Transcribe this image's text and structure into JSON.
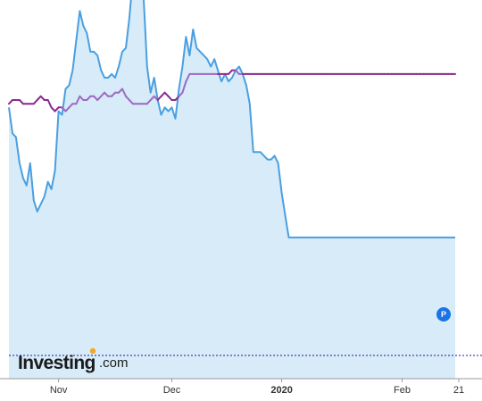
{
  "colors": {
    "series_a_line": "#4a9fe0",
    "series_a_fill": "#d8ebf8",
    "series_b_line": "#8a2a8c",
    "series_b_light": "#9b6bc2",
    "last_line": "#1a1aa0",
    "logo_accent": "#f5a623",
    "marker": "#1a73e8"
  },
  "logo": {
    "main": "Investing",
    "domain": ".com"
  },
  "marker": {
    "label": "P"
  },
  "chart_data": {
    "type": "line",
    "x_axis": {
      "tick_labels": [
        {
          "label": "Nov",
          "index": 14,
          "bold": false
        },
        {
          "label": "Dec",
          "index": 46,
          "bold": false
        },
        {
          "label": "2020",
          "index": 77,
          "bold": true
        },
        {
          "label": "Feb",
          "index": 111,
          "bold": false
        },
        {
          "label": "21",
          "index": 127,
          "bold": false
        }
      ]
    },
    "y_axis": {
      "ylim": [
        0,
        100
      ],
      "labels_shown": false
    },
    "grid": false,
    "legend": "none",
    "series": [
      {
        "style": "area",
        "values": [
          [
            0,
            73
          ],
          [
            1,
            66
          ],
          [
            2,
            65
          ],
          [
            3,
            58
          ],
          [
            4,
            54
          ],
          [
            5,
            52
          ],
          [
            6,
            58
          ],
          [
            7,
            48
          ],
          [
            8,
            45
          ],
          [
            9,
            47
          ],
          [
            10,
            49
          ],
          [
            11,
            53
          ],
          [
            12,
            51
          ],
          [
            13,
            56
          ],
          [
            14,
            72
          ],
          [
            15,
            71
          ],
          [
            16,
            78
          ],
          [
            17,
            79
          ],
          [
            18,
            83
          ],
          [
            19,
            91
          ],
          [
            20,
            99
          ],
          [
            21,
            95
          ],
          [
            22,
            93
          ],
          [
            23,
            88
          ],
          [
            24,
            88
          ],
          [
            25,
            87
          ],
          [
            26,
            83
          ],
          [
            27,
            81
          ],
          [
            28,
            81
          ],
          [
            29,
            82
          ],
          [
            30,
            81
          ],
          [
            31,
            84
          ],
          [
            32,
            88
          ],
          [
            33,
            89
          ],
          [
            34,
            97
          ],
          [
            35,
            108
          ],
          [
            36,
            104
          ],
          [
            37,
            104
          ],
          [
            38,
            103
          ],
          [
            39,
            84
          ],
          [
            40,
            77
          ],
          [
            41,
            81
          ],
          [
            42,
            75
          ],
          [
            43,
            71
          ],
          [
            44,
            73
          ],
          [
            45,
            72
          ],
          [
            46,
            73
          ],
          [
            47,
            70
          ],
          [
            48,
            78
          ],
          [
            49,
            84
          ],
          [
            50,
            92
          ],
          [
            51,
            87
          ],
          [
            52,
            94
          ],
          [
            53,
            89
          ],
          [
            54,
            88
          ],
          [
            55,
            87
          ],
          [
            56,
            86
          ],
          [
            57,
            84
          ],
          [
            58,
            86
          ],
          [
            59,
            83
          ],
          [
            60,
            80
          ],
          [
            61,
            82
          ],
          [
            62,
            80
          ],
          [
            63,
            81
          ],
          [
            64,
            83
          ],
          [
            65,
            84
          ],
          [
            66,
            82
          ],
          [
            67,
            79
          ],
          [
            68,
            74
          ],
          [
            69,
            61
          ],
          [
            70,
            61
          ],
          [
            71,
            61
          ],
          [
            72,
            60
          ],
          [
            73,
            59
          ],
          [
            74,
            59
          ],
          [
            75,
            60
          ],
          [
            76,
            58
          ],
          [
            77,
            50
          ],
          [
            78,
            44
          ],
          [
            79,
            38
          ],
          [
            80,
            38
          ],
          [
            81,
            38
          ],
          [
            82,
            38
          ],
          [
            83,
            38
          ],
          [
            84,
            38
          ],
          [
            85,
            38
          ],
          [
            86,
            38
          ],
          [
            87,
            38
          ],
          [
            88,
            38
          ],
          [
            89,
            38
          ],
          [
            90,
            38
          ],
          [
            91,
            38
          ],
          [
            92,
            38
          ],
          [
            93,
            38
          ],
          [
            94,
            38
          ],
          [
            95,
            38
          ],
          [
            96,
            38
          ],
          [
            97,
            38
          ],
          [
            98,
            38
          ],
          [
            99,
            38
          ],
          [
            100,
            38
          ],
          [
            101,
            38
          ],
          [
            102,
            38
          ],
          [
            103,
            38
          ],
          [
            104,
            38
          ],
          [
            105,
            38
          ],
          [
            106,
            38
          ],
          [
            107,
            38
          ],
          [
            108,
            38
          ],
          [
            109,
            38
          ],
          [
            110,
            38
          ],
          [
            111,
            38
          ],
          [
            112,
            38
          ],
          [
            113,
            38
          ],
          [
            114,
            38
          ],
          [
            115,
            38
          ],
          [
            116,
            38
          ],
          [
            117,
            38
          ],
          [
            118,
            38
          ],
          [
            119,
            38
          ],
          [
            120,
            38
          ],
          [
            121,
            38
          ],
          [
            122,
            38
          ],
          [
            123,
            38
          ],
          [
            124,
            38
          ],
          [
            125,
            38
          ],
          [
            126,
            38
          ]
        ]
      },
      {
        "style": "line",
        "values": [
          [
            0,
            74
          ],
          [
            1,
            75
          ],
          [
            2,
            75
          ],
          [
            3,
            75
          ],
          [
            4,
            74
          ],
          [
            5,
            74
          ],
          [
            6,
            74
          ],
          [
            7,
            74
          ],
          [
            8,
            75
          ],
          [
            9,
            76
          ],
          [
            10,
            75
          ],
          [
            11,
            75
          ],
          [
            12,
            73
          ],
          [
            13,
            72
          ],
          [
            14,
            73
          ],
          [
            15,
            73
          ],
          [
            16,
            72
          ],
          [
            17,
            73
          ],
          [
            18,
            74
          ],
          [
            19,
            74
          ],
          [
            20,
            76
          ],
          [
            21,
            75
          ],
          [
            22,
            75
          ],
          [
            23,
            76
          ],
          [
            24,
            76
          ],
          [
            25,
            75
          ],
          [
            26,
            76
          ],
          [
            27,
            77
          ],
          [
            28,
            76
          ],
          [
            29,
            76
          ],
          [
            30,
            77
          ],
          [
            31,
            77
          ],
          [
            32,
            78
          ],
          [
            33,
            76
          ],
          [
            34,
            75
          ],
          [
            35,
            74
          ],
          [
            36,
            74
          ],
          [
            37,
            74
          ],
          [
            38,
            74
          ],
          [
            39,
            74
          ],
          [
            40,
            75
          ],
          [
            41,
            76
          ],
          [
            42,
            75
          ],
          [
            43,
            76
          ],
          [
            44,
            77
          ],
          [
            45,
            76
          ],
          [
            46,
            75
          ],
          [
            47,
            75
          ],
          [
            48,
            76
          ],
          [
            49,
            77
          ],
          [
            50,
            80
          ],
          [
            51,
            82
          ],
          [
            52,
            82
          ],
          [
            53,
            82
          ],
          [
            54,
            82
          ],
          [
            55,
            82
          ],
          [
            56,
            82
          ],
          [
            57,
            82
          ],
          [
            58,
            82
          ],
          [
            59,
            82
          ],
          [
            60,
            82
          ],
          [
            61,
            82
          ],
          [
            62,
            82
          ],
          [
            63,
            83
          ],
          [
            64,
            83
          ],
          [
            65,
            82
          ],
          [
            66,
            82
          ],
          [
            67,
            82
          ],
          [
            68,
            82
          ],
          [
            69,
            82
          ],
          [
            70,
            82
          ],
          [
            71,
            82
          ],
          [
            72,
            82
          ],
          [
            73,
            82
          ],
          [
            74,
            82
          ],
          [
            75,
            82
          ],
          [
            76,
            82
          ],
          [
            77,
            82
          ],
          [
            78,
            82
          ],
          [
            79,
            82
          ],
          [
            80,
            82
          ],
          [
            81,
            82
          ],
          [
            82,
            82
          ],
          [
            83,
            82
          ],
          [
            84,
            82
          ],
          [
            85,
            82
          ],
          [
            86,
            82
          ],
          [
            87,
            82
          ],
          [
            88,
            82
          ],
          [
            89,
            82
          ],
          [
            90,
            82
          ],
          [
            91,
            82
          ],
          [
            92,
            82
          ],
          [
            93,
            82
          ],
          [
            94,
            82
          ],
          [
            95,
            82
          ],
          [
            96,
            82
          ],
          [
            97,
            82
          ],
          [
            98,
            82
          ],
          [
            99,
            82
          ],
          [
            100,
            82
          ],
          [
            101,
            82
          ],
          [
            102,
            82
          ],
          [
            103,
            82
          ],
          [
            104,
            82
          ],
          [
            105,
            82
          ],
          [
            106,
            82
          ],
          [
            107,
            82
          ],
          [
            108,
            82
          ],
          [
            109,
            82
          ],
          [
            110,
            82
          ],
          [
            111,
            82
          ],
          [
            112,
            82
          ],
          [
            113,
            82
          ],
          [
            114,
            82
          ],
          [
            115,
            82
          ],
          [
            116,
            82
          ],
          [
            117,
            82
          ],
          [
            118,
            82
          ],
          [
            119,
            82
          ],
          [
            120,
            82
          ],
          [
            121,
            82
          ],
          [
            122,
            82
          ],
          [
            123,
            82
          ],
          [
            124,
            82
          ],
          [
            125,
            82
          ],
          [
            126,
            82
          ]
        ]
      }
    ]
  }
}
